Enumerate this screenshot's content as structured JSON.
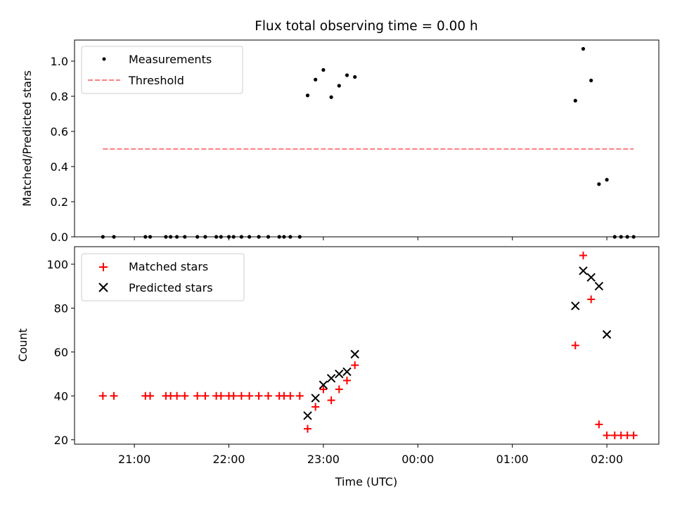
{
  "chart_data": {
    "title": "Flux total observing time = 0.00 h",
    "xlabel": "Time (UTC)",
    "x_ticks": [
      "21:00",
      "22:00",
      "23:00",
      "00:00",
      "01:00",
      "02:00"
    ],
    "x_range": [
      "20:22",
      "02:33"
    ],
    "colors": {
      "measurements": "#000000",
      "threshold": "#ff8080",
      "matched": "#ff0000",
      "predicted": "#000000"
    },
    "panels": [
      {
        "type": "scatter",
        "ylabel": "Matched/Predicted stars",
        "ylim": [
          0,
          1.12
        ],
        "y_ticks": [
          "0.0",
          "0.2",
          "0.4",
          "0.6",
          "0.8",
          "1.0"
        ],
        "y_tick_values": [
          0,
          0.2,
          0.4,
          0.6,
          0.8,
          1.0
        ],
        "legend": {
          "placement": "upper-left",
          "entries": [
            "Measurements",
            "Threshold"
          ]
        },
        "series": [
          {
            "name": "Measurements",
            "marker": "dot",
            "points": [
              [
                "20:40",
                0
              ],
              [
                "20:47",
                0
              ],
              [
                "21:07",
                0
              ],
              [
                "21:10",
                0
              ],
              [
                "21:20",
                0
              ],
              [
                "21:23",
                0
              ],
              [
                "21:27",
                0
              ],
              [
                "21:32",
                0
              ],
              [
                "21:40",
                0
              ],
              [
                "21:45",
                0
              ],
              [
                "21:52",
                0
              ],
              [
                "21:55",
                0
              ],
              [
                "22:00",
                0
              ],
              [
                "22:03",
                0
              ],
              [
                "22:08",
                0
              ],
              [
                "22:13",
                0
              ],
              [
                "22:19",
                0
              ],
              [
                "22:25",
                0
              ],
              [
                "22:32",
                0
              ],
              [
                "22:35",
                0
              ],
              [
                "22:39",
                0
              ],
              [
                "22:45",
                0
              ],
              [
                "22:50",
                0.805
              ],
              [
                "22:55",
                0.895
              ],
              [
                "23:00",
                0.95
              ],
              [
                "23:05",
                0.795
              ],
              [
                "23:10",
                0.86
              ],
              [
                "23:15",
                0.92
              ],
              [
                "23:20",
                0.91
              ],
              [
                "01:40",
                0.775
              ],
              [
                "01:45",
                1.07
              ],
              [
                "01:50",
                0.89
              ],
              [
                "01:55",
                0.3
              ],
              [
                "02:00",
                0.325
              ],
              [
                "02:05",
                0
              ],
              [
                "02:09",
                0
              ],
              [
                "02:13",
                0
              ],
              [
                "02:17",
                0
              ]
            ]
          },
          {
            "name": "Threshold",
            "marker": "dashed-line",
            "points": [
              [
                "20:40",
                0.5
              ],
              [
                "02:17",
                0.5
              ]
            ]
          }
        ]
      },
      {
        "type": "scatter",
        "ylabel": "Count",
        "ylim": [
          18,
          108
        ],
        "y_ticks": [
          "20",
          "40",
          "60",
          "80",
          "100"
        ],
        "y_tick_values": [
          20,
          40,
          60,
          80,
          100
        ],
        "legend": {
          "placement": "upper-left",
          "entries": [
            "Matched stars",
            "Predicted stars"
          ]
        },
        "series": [
          {
            "name": "Matched stars",
            "marker": "plus",
            "points": [
              [
                "20:40",
                40
              ],
              [
                "20:47",
                40
              ],
              [
                "21:07",
                40
              ],
              [
                "21:10",
                40
              ],
              [
                "21:20",
                40
              ],
              [
                "21:23",
                40
              ],
              [
                "21:27",
                40
              ],
              [
                "21:32",
                40
              ],
              [
                "21:40",
                40
              ],
              [
                "21:45",
                40
              ],
              [
                "21:52",
                40
              ],
              [
                "21:55",
                40
              ],
              [
                "22:00",
                40
              ],
              [
                "22:03",
                40
              ],
              [
                "22:08",
                40
              ],
              [
                "22:13",
                40
              ],
              [
                "22:19",
                40
              ],
              [
                "22:25",
                40
              ],
              [
                "22:32",
                40
              ],
              [
                "22:35",
                40
              ],
              [
                "22:39",
                40
              ],
              [
                "22:45",
                40
              ],
              [
                "22:50",
                25
              ],
              [
                "22:55",
                35
              ],
              [
                "23:00",
                43
              ],
              [
                "23:05",
                38
              ],
              [
                "23:10",
                43
              ],
              [
                "23:15",
                47
              ],
              [
                "23:20",
                54
              ],
              [
                "01:40",
                63
              ],
              [
                "01:45",
                104
              ],
              [
                "01:50",
                84
              ],
              [
                "01:55",
                27
              ],
              [
                "02:00",
                22
              ],
              [
                "02:05",
                22
              ],
              [
                "02:09",
                22
              ],
              [
                "02:13",
                22
              ],
              [
                "02:17",
                22
              ]
            ]
          },
          {
            "name": "Predicted stars",
            "marker": "x",
            "points": [
              [
                "22:50",
                31
              ],
              [
                "22:55",
                39
              ],
              [
                "23:00",
                45
              ],
              [
                "23:05",
                48
              ],
              [
                "23:10",
                50
              ],
              [
                "23:15",
                51
              ],
              [
                "23:20",
                59
              ],
              [
                "01:40",
                81
              ],
              [
                "01:45",
                97
              ],
              [
                "01:50",
                94
              ],
              [
                "01:55",
                90
              ],
              [
                "02:00",
                68
              ]
            ]
          }
        ]
      }
    ]
  }
}
